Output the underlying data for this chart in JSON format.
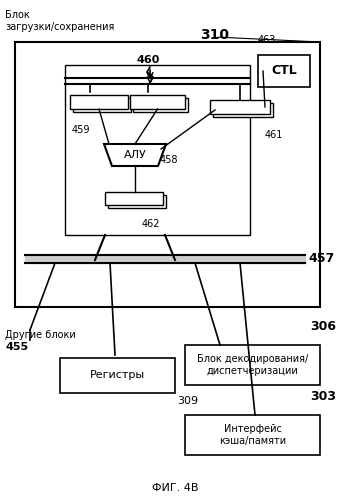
{
  "title": "ФИГ. 4В",
  "bg_color": "#ffffff",
  "label_310": "310",
  "label_457": "457",
  "label_460": "460",
  "label_459": "459",
  "label_461": "461",
  "label_458": "458",
  "label_462": "462",
  "label_463": "463",
  "label_455": "455",
  "label_309": "309",
  "label_306": "306",
  "label_303": "303",
  "text_block_load": "Блок\nзагрузки/сохранения",
  "text_other_blocks": "Другие блоки",
  "text_registers": "Регистры",
  "text_alu": "АЛУ",
  "text_ctl": "CTL",
  "text_decode": "Блок декодирования/\nдиспетчеризации",
  "text_cache": "Интерфейс\nкэша/памяти"
}
